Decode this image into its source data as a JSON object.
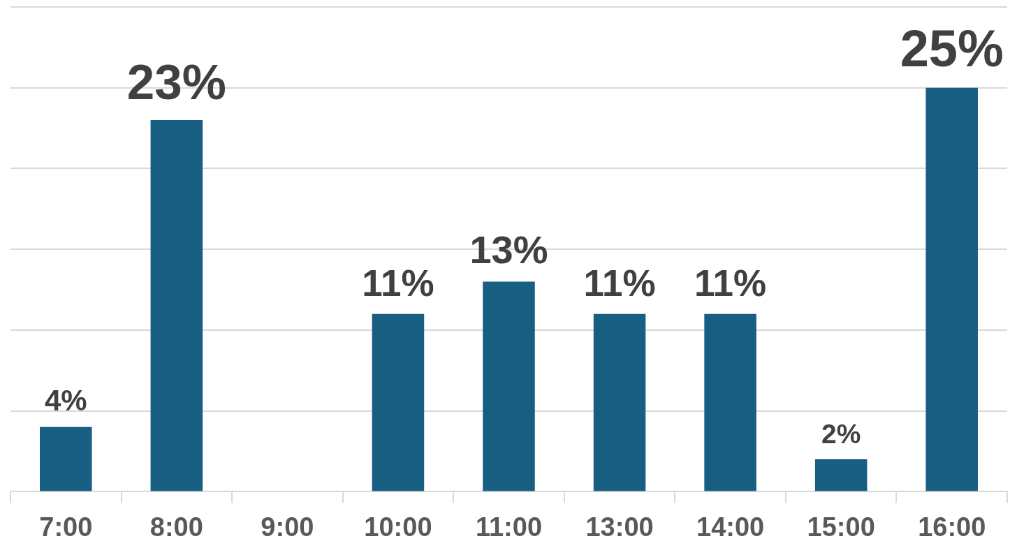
{
  "chart_data": {
    "type": "bar",
    "categories": [
      "7:00",
      "8:00",
      "9:00",
      "10:00",
      "11:00",
      "13:00",
      "14:00",
      "15:00",
      "16:00"
    ],
    "values": [
      4,
      23,
      null,
      11,
      13,
      11,
      11,
      2,
      25
    ],
    "value_labels": [
      "4%",
      "23%",
      null,
      "11%",
      "13%",
      "11%",
      "11%",
      "2%",
      "25%"
    ],
    "color": "#175e82",
    "grid": "y",
    "tick_labels": "x",
    "legend": false
  }
}
